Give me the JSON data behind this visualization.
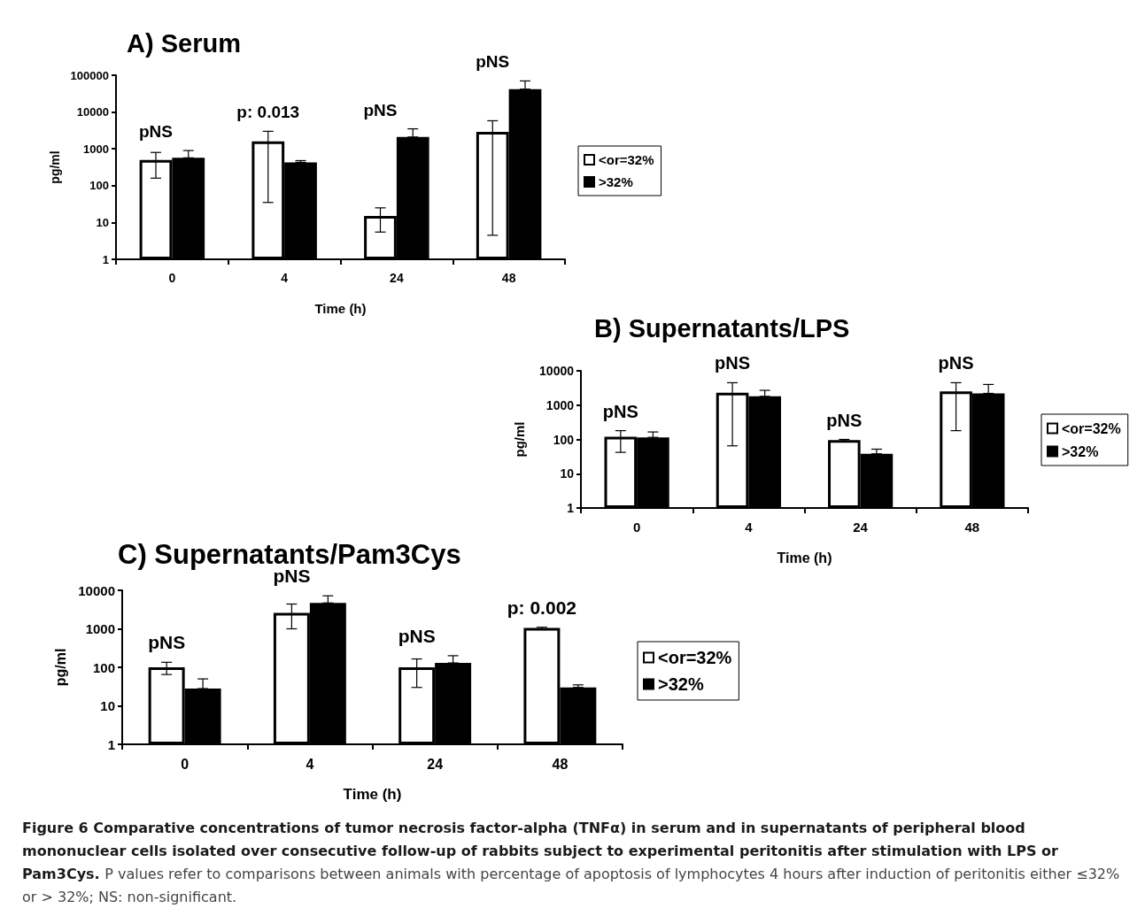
{
  "chart_data": [
    {
      "type": "bar",
      "title": "A) Serum",
      "xlabel": "Time (h)",
      "ylabel": "pg/ml",
      "categories": [
        "0",
        "4",
        "24",
        "48"
      ],
      "log": true,
      "ylim": [
        1,
        100000
      ],
      "yticks": [
        1,
        10,
        100,
        1000,
        10000,
        100000
      ],
      "legend": "right",
      "grid": false,
      "series": [
        {
          "name": "<or=32%",
          "color": "#ffffff",
          "values": [
            500,
            1600,
            15,
            2900
          ],
          "errors": [
            [
              160,
              800
            ],
            [
              35,
              3000
            ],
            [
              5.5,
              25
            ],
            [
              4.5,
              5800
            ]
          ]
        },
        {
          "name": ">32%",
          "color": "#000000",
          "values": [
            570,
            430,
            2100,
            42000
          ],
          "errors": [
            [
              570,
              900
            ],
            [
              430,
              480
            ],
            [
              2100,
              3500
            ],
            [
              42000,
              70000
            ]
          ]
        }
      ],
      "annotations": [
        "pNS",
        "p: 0.013",
        "pNS",
        "pNS"
      ]
    },
    {
      "type": "bar",
      "title": "B) Supernatants/LPS",
      "xlabel": "Time (h)",
      "ylabel": "pg/ml",
      "categories": [
        "0",
        "4",
        "24",
        "48"
      ],
      "log": true,
      "ylim": [
        1,
        10000
      ],
      "yticks": [
        1,
        10,
        100,
        1000,
        10000
      ],
      "legend": "right",
      "grid": false,
      "series": [
        {
          "name": "<or=32%",
          "color": "#ffffff",
          "values": [
            120,
            2300,
            95,
            2500
          ],
          "errors": [
            [
              42,
              180
            ],
            [
              65,
              4500
            ],
            [
              90,
              100
            ],
            [
              180,
              4500
            ]
          ]
        },
        {
          "name": ">32%",
          "color": "#000000",
          "values": [
            115,
            1800,
            38,
            2200
          ],
          "errors": [
            [
              115,
              165
            ],
            [
              1800,
              2700
            ],
            [
              38,
              52
            ],
            [
              2200,
              4000
            ]
          ]
        }
      ],
      "annotations": [
        "pNS",
        "pNS",
        "pNS",
        "pNS"
      ]
    },
    {
      "type": "bar",
      "title": "C) Supernatants/Pam3Cys",
      "xlabel": "Time (h)",
      "ylabel": "pg/ml",
      "categories": [
        "0",
        "4",
        "24",
        "48"
      ],
      "log": true,
      "ylim": [
        1,
        10000
      ],
      "yticks": [
        1,
        10,
        100,
        1000,
        10000
      ],
      "legend": "right",
      "grid": false,
      "series": [
        {
          "name": "<or=32%",
          "color": "#ffffff",
          "values": [
            100,
            2600,
            100,
            1050
          ],
          "errors": [
            [
              65,
              135
            ],
            [
              1000,
              4400
            ],
            [
              30,
              165
            ],
            [
              950,
              1100
            ]
          ]
        },
        {
          "name": ">32%",
          "color": "#000000",
          "values": [
            28,
            4700,
            130,
            30
          ],
          "errors": [
            [
              28,
              50
            ],
            [
              4700,
              7200
            ],
            [
              130,
              200
            ],
            [
              30,
              35
            ]
          ]
        }
      ],
      "annotations": [
        "pNS",
        "pNS",
        "pNS",
        "p: 0.002",
        "Figure 6 Comparative concentrations of tumor necrosis factor-alpha (TNFα) in serum and in supernatants of peripheral blood mononuclear cells isolated over consecutive follow-up of rabbits subject to experimental peritonitis after stimulation with LPS or Pam3Cys.",
        "P values refer to comparisons between animals with percentage of apoptosis of lymphocytes 4 hours after induction of peritonitis either ≤32% or > 32%; NS: non-significant."
      ]
    }
  ]
}
